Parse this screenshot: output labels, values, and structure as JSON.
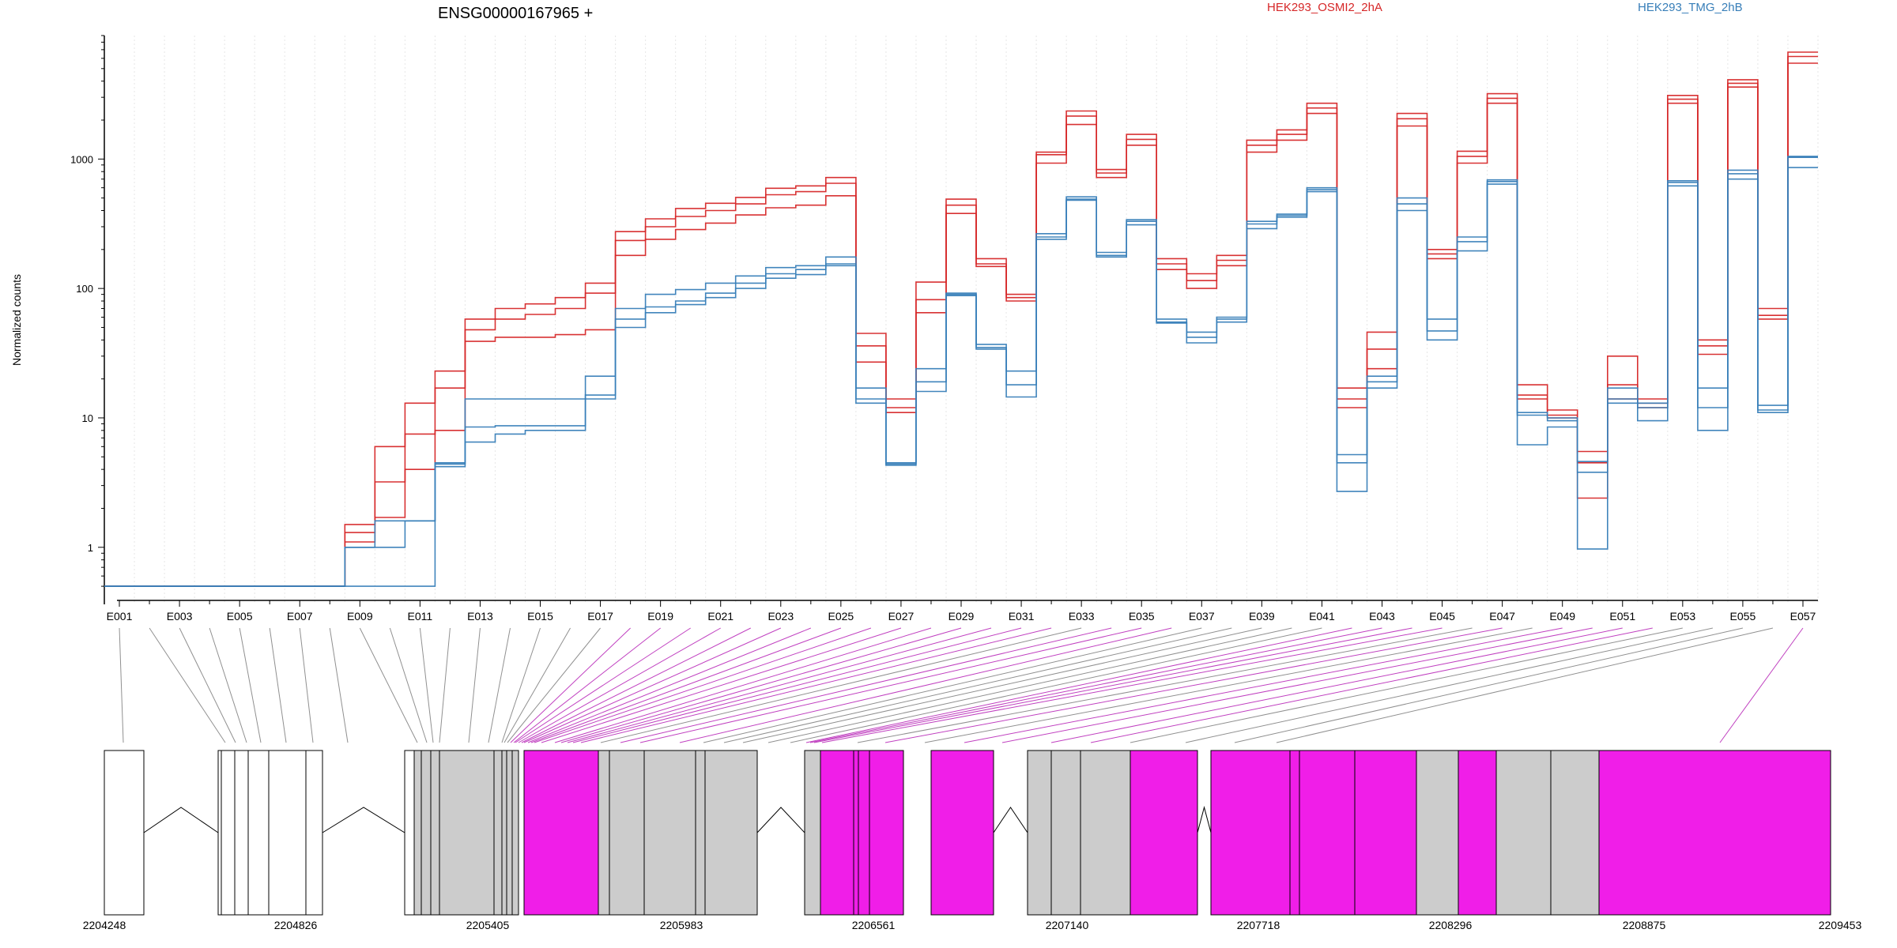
{
  "chart_data": {
    "type": "line",
    "title": "ENSG00000167965 +",
    "ylabel": "Normalized counts",
    "yscale": "log",
    "ylim": [
      0.48,
      9000
    ],
    "yticks": [
      1,
      10,
      100,
      1000
    ],
    "ytick_labels": [
      "1",
      "10",
      "100",
      "1000"
    ],
    "grid": true,
    "legend": [
      {
        "name": "HEK293_OSMI2_2hA",
        "color": "#d62728"
      },
      {
        "name": "HEK293_TMG_2hB",
        "color": "#377eb8"
      }
    ],
    "exons": [
      "E001",
      "E002",
      "E003",
      "E004",
      "E005",
      "E006",
      "E007",
      "E008",
      "E009",
      "E010",
      "E011",
      "E012",
      "E013",
      "E014",
      "E015",
      "E016",
      "E017",
      "E018",
      "E019",
      "E020",
      "E021",
      "E022",
      "E023",
      "E024",
      "E025",
      "E026",
      "E027",
      "E028",
      "E029",
      "E030",
      "E031",
      "E032",
      "E033",
      "E034",
      "E035",
      "E036",
      "E037",
      "E038",
      "E039",
      "E040",
      "E041",
      "E042",
      "E043",
      "E044",
      "E045",
      "E046",
      "E047",
      "E048",
      "E049",
      "E050",
      "E051",
      "E052",
      "E053",
      "E054",
      "E055",
      "E056",
      "E057"
    ],
    "exon_tick_labels": [
      "E001",
      "E003",
      "E005",
      "E007",
      "E009",
      "E011",
      "E013",
      "E015",
      "E017",
      "E019",
      "E021",
      "E023",
      "E025",
      "E027",
      "E029",
      "E031",
      "E033",
      "E035",
      "E037",
      "E039",
      "E041",
      "E043",
      "E045",
      "E047",
      "E049",
      "E051",
      "E053",
      "E055",
      "E057"
    ],
    "series": [
      {
        "name": "HEK293_OSMI2_2hA",
        "group": "OSMI2",
        "color": "#d62728",
        "values": [
          0.5,
          0.5,
          0.5,
          0.5,
          0.5,
          0.5,
          0.5,
          0.5,
          1.5,
          6,
          13,
          23,
          58,
          70,
          76,
          85,
          110,
          275,
          345,
          415,
          455,
          505,
          595,
          620,
          720,
          45,
          14,
          112,
          490,
          170,
          90,
          1130,
          2350,
          830,
          1550,
          170,
          130,
          180,
          1400,
          1680,
          2700,
          17,
          46,
          2250,
          200,
          1150,
          3200,
          18,
          11.5,
          5.5,
          30,
          14,
          3100,
          40,
          4100,
          70,
          6700
        ]
      },
      {
        "name": "HEK293_OSMI2_2hA",
        "group": "OSMI2",
        "color": "#d62728",
        "values": [
          0.5,
          0.5,
          0.5,
          0.5,
          0.5,
          0.5,
          0.5,
          0.5,
          1.3,
          3.2,
          7.5,
          17,
          48,
          58,
          63,
          70,
          92,
          235,
          300,
          360,
          400,
          450,
          530,
          560,
          650,
          36,
          12,
          82,
          440,
          155,
          85,
          1080,
          2150,
          780,
          1420,
          155,
          115,
          165,
          1280,
          1550,
          2480,
          14,
          34,
          2050,
          185,
          1050,
          2950,
          15,
          10.5,
          4.5,
          18,
          13,
          2900,
          36,
          3850,
          62,
          6200
        ]
      },
      {
        "name": "HEK293_OSMI2_2hA",
        "group": "OSMI2",
        "color": "#d62728",
        "values": [
          0.5,
          0.5,
          0.5,
          0.5,
          0.5,
          0.5,
          0.5,
          0.5,
          1.1,
          1.7,
          4,
          8,
          39,
          42,
          42,
          44,
          48,
          180,
          240,
          285,
          320,
          370,
          420,
          440,
          520,
          27,
          11,
          65,
          380,
          148,
          80,
          930,
          1850,
          720,
          1280,
          140,
          100,
          150,
          1130,
          1400,
          2250,
          12,
          24,
          1800,
          170,
          930,
          2700,
          14,
          10,
          2.4,
          14,
          12,
          2700,
          31,
          3600,
          58,
          5500
        ]
      },
      {
        "name": "HEK293_TMG_2hB",
        "group": "TMG",
        "color": "#377eb8",
        "values": [
          0.5,
          0.5,
          0.5,
          0.5,
          0.5,
          0.5,
          0.5,
          0.5,
          1.0,
          1.6,
          1.6,
          4.5,
          14,
          14,
          14,
          14,
          21,
          70,
          90,
          98,
          110,
          125,
          145,
          150,
          175,
          17,
          4.5,
          24,
          92,
          37,
          23,
          265,
          510,
          190,
          340,
          58,
          46,
          60,
          330,
          375,
          600,
          5.2,
          21,
          500,
          58,
          250,
          690,
          11,
          10,
          4.6,
          17,
          13,
          680,
          17,
          820,
          12.5,
          1050
        ]
      },
      {
        "name": "HEK293_TMG_2hB",
        "group": "TMG",
        "color": "#377eb8",
        "values": [
          0.5,
          0.5,
          0.5,
          0.5,
          0.5,
          0.5,
          0.5,
          0.5,
          1.0,
          1.0,
          1.6,
          4.4,
          8.5,
          8.7,
          8.7,
          8.7,
          15,
          58,
          72,
          80,
          92,
          110,
          130,
          140,
          155,
          14,
          4.4,
          19,
          90,
          35,
          18,
          250,
          490,
          180,
          330,
          55,
          42,
          58,
          315,
          365,
          580,
          4.5,
          19,
          450,
          47,
          230,
          670,
          10.5,
          9.5,
          3.8,
          14,
          12,
          660,
          12,
          770,
          11.5,
          1030
        ]
      },
      {
        "name": "HEK293_TMG_2hB",
        "group": "TMG",
        "color": "#377eb8",
        "values": [
          0.5,
          0.5,
          0.5,
          0.5,
          0.5,
          0.5,
          0.5,
          0.5,
          0.5,
          0.5,
          0.5,
          4.2,
          6.5,
          7.5,
          8,
          8,
          14,
          50,
          65,
          75,
          85,
          100,
          120,
          128,
          150,
          13,
          4.3,
          16,
          88,
          34,
          14.5,
          240,
          480,
          175,
          310,
          54,
          38,
          55,
          290,
          355,
          560,
          2.7,
          17,
          400,
          40,
          195,
          640,
          6.2,
          8.5,
          0.97,
          13,
          9.5,
          620,
          8,
          700,
          11,
          860
        ]
      }
    ],
    "xlabel_coords": [
      "2204248",
      "2204826",
      "2205405",
      "2205983",
      "2206561",
      "2207140",
      "2207718",
      "2208296",
      "2208875",
      "2209453"
    ]
  }
}
